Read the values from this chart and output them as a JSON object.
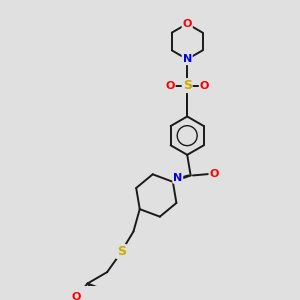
{
  "bg_color": "#e0e0e0",
  "bond_color": "#1a1a1a",
  "atom_colors": {
    "O": "#ff0000",
    "N": "#0000ee",
    "S": "#ccaa00",
    "C": "#1a1a1a"
  },
  "figsize": [
    3.0,
    3.0
  ],
  "dpi": 100,
  "lw": 1.4,
  "fontsize": 7.5
}
